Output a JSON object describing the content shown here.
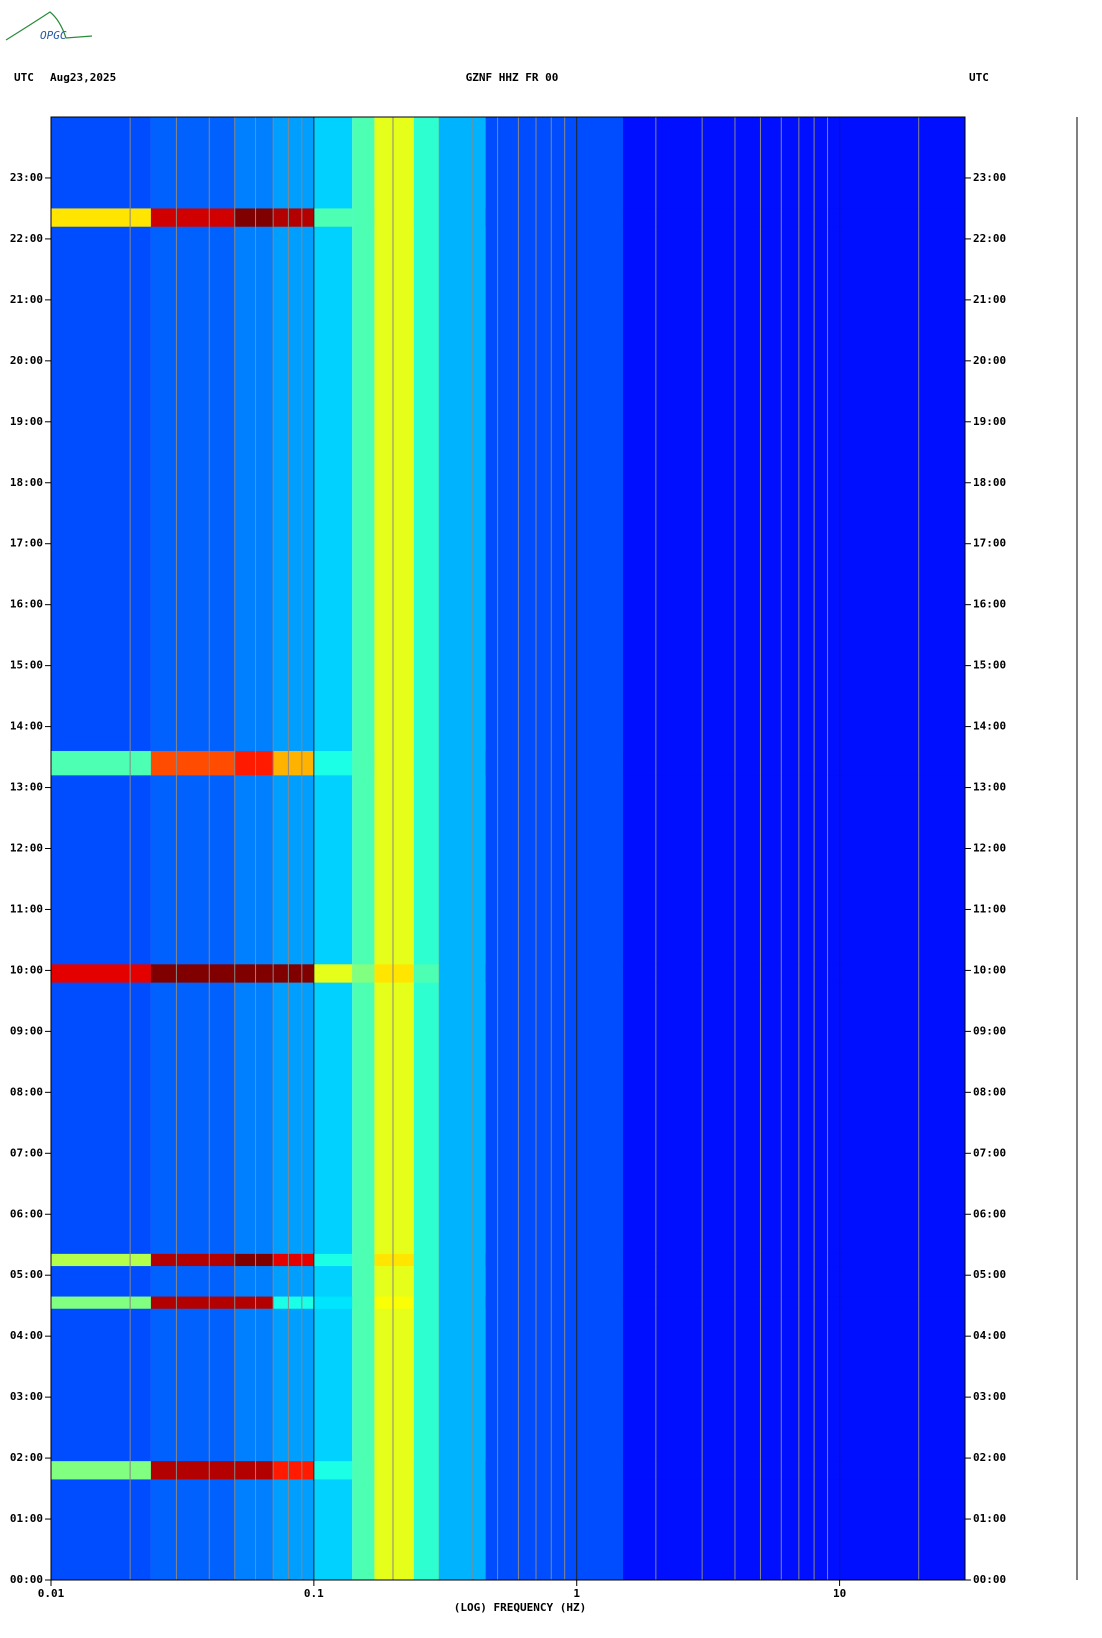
{
  "chart_data": {
    "type": "spectrogram",
    "logo": "OPGC",
    "header_left": "UTC",
    "date": "Aug23,2025",
    "title": "GZNF HHZ FR 00",
    "header_right": "UTC",
    "xlabel": "(LOG) FREQUENCY (HZ)",
    "xscale": "log",
    "xlim": [
      0.01,
      30
    ],
    "xticks": [
      {
        "value": 0.01,
        "label": "0.01"
      },
      {
        "value": 0.1,
        "label": "0.1"
      },
      1,
      10
    ],
    "xgrid": [
      0.02,
      0.03,
      0.04,
      0.05,
      0.06,
      0.07,
      0.08,
      0.09,
      0.2,
      0.3,
      0.4,
      0.5,
      0.6,
      0.7,
      0.8,
      0.9,
      2,
      3,
      4,
      5,
      6,
      7,
      8,
      9,
      20
    ],
    "ylim": [
      0,
      24
    ],
    "yticks": [
      {
        "value": 0,
        "label": "00:00"
      },
      {
        "value": 1,
        "label": "01:00"
      },
      {
        "value": 2,
        "label": "02:00"
      },
      {
        "value": 3,
        "label": "03:00"
      },
      {
        "value": 4,
        "label": "04:00"
      },
      {
        "value": 5,
        "label": "05:00"
      },
      {
        "value": 6,
        "label": "06:00"
      },
      {
        "value": 7,
        "label": "07:00"
      },
      {
        "value": 8,
        "label": "08:00"
      },
      {
        "value": 9,
        "label": "09:00"
      },
      {
        "value": 10,
        "label": "10:00"
      },
      {
        "value": 11,
        "label": "11:00"
      },
      {
        "value": 12,
        "label": "12:00"
      },
      {
        "value": 13,
        "label": "13:00"
      },
      {
        "value": 14,
        "label": "14:00"
      },
      {
        "value": 15,
        "label": "15:00"
      },
      {
        "value": 16,
        "label": "16:00"
      },
      {
        "value": 17,
        "label": "17:00"
      },
      {
        "value": 18,
        "label": "18:00"
      },
      {
        "value": 19,
        "label": "19:00"
      },
      {
        "value": 20,
        "label": "20:00"
      },
      {
        "value": 21,
        "label": "21:00"
      },
      {
        "value": 22,
        "label": "22:00"
      },
      {
        "value": 23,
        "label": "23:00"
      }
    ],
    "freq_edges": [
      0.01,
      0.024,
      0.05,
      0.07,
      0.1,
      0.14,
      0.17,
      0.24,
      0.3,
      0.45,
      1.5,
      30
    ],
    "background": [
      0.2,
      0.22,
      0.25,
      0.28,
      0.33,
      0.45,
      0.6,
      0.42,
      0.3,
      0.2,
      0.14
    ],
    "events": [
      {
        "time": [
          22.2,
          22.5
        ],
        "levels": [
          0.65,
          0.92,
          1.0,
          0.95,
          0.45,
          0.45,
          0.6,
          0.42,
          0.3,
          0.2,
          0.14
        ]
      },
      {
        "time": [
          13.2,
          13.6
        ],
        "levels": [
          0.45,
          0.8,
          0.85,
          0.7,
          0.4,
          0.45,
          0.6,
          0.42,
          0.3,
          0.2,
          0.14
        ]
      },
      {
        "time": [
          9.8,
          10.1
        ],
        "levels": [
          0.9,
          1.0,
          1.0,
          1.0,
          0.6,
          0.5,
          0.65,
          0.45,
          0.3,
          0.2,
          0.14
        ]
      },
      {
        "time": [
          5.15,
          5.35
        ],
        "levels": [
          0.55,
          0.95,
          1.0,
          0.9,
          0.4,
          0.45,
          0.65,
          0.42,
          0.3,
          0.2,
          0.14
        ]
      },
      {
        "time": [
          4.45,
          4.65
        ],
        "levels": [
          0.5,
          0.95,
          0.95,
          0.4,
          0.35,
          0.45,
          0.62,
          0.42,
          0.3,
          0.2,
          0.14
        ]
      },
      {
        "time": [
          1.65,
          1.95
        ],
        "levels": [
          0.5,
          0.95,
          0.95,
          0.85,
          0.4,
          0.45,
          0.6,
          0.42,
          0.3,
          0.2,
          0.14
        ]
      }
    ]
  }
}
